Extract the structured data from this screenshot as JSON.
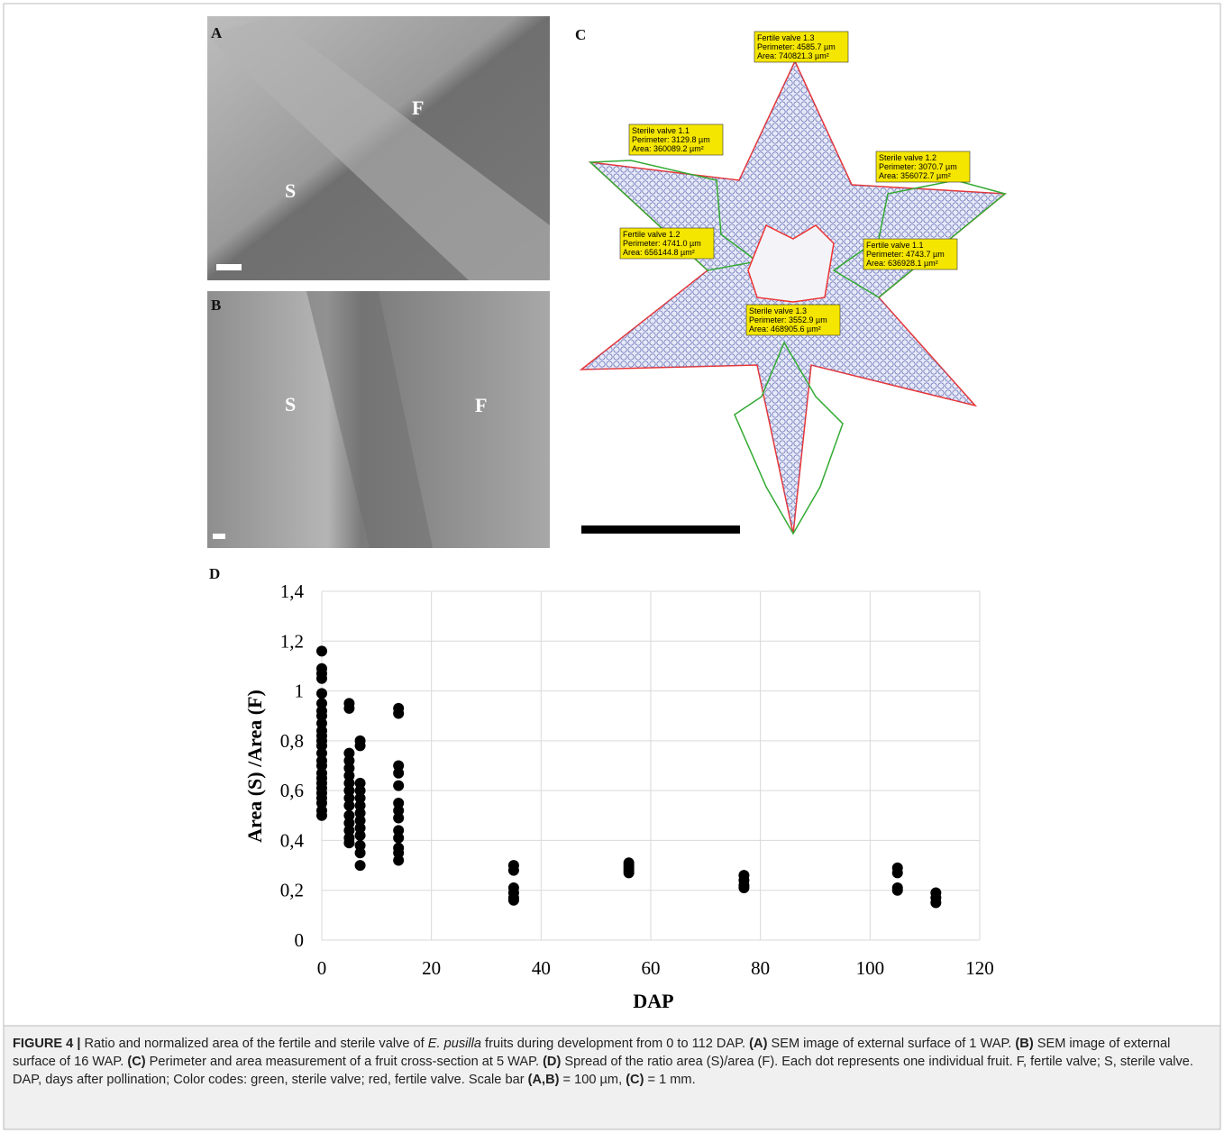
{
  "panels": {
    "a": {
      "letter": "A",
      "labels": [
        "F",
        "S"
      ]
    },
    "b": {
      "letter": "B",
      "labels": [
        "S",
        "F"
      ]
    },
    "c": {
      "letter": "C"
    },
    "d": {
      "letter": "D"
    }
  },
  "panel_c": {
    "annotations": [
      [
        "Fertile valve 1.3",
        "Perimeter: 4585.7 µm",
        "Area: 740821.3 µm²"
      ],
      [
        "Sterile valve 1.1",
        "Perimeter: 3129.8 µm",
        "Area: 360089.2 µm²"
      ],
      [
        "Sterile valve 1.2",
        "Perimeter: 3070.7 µm",
        "Area: 356072.7 µm²"
      ],
      [
        "Fertile valve 1.2",
        "Perimeter: 4741.0 µm",
        "Area: 656144.8 µm²"
      ],
      [
        "Fertile valve 1.1",
        "Perimeter: 4743.7 µm",
        "Area: 636928.1 µm²"
      ],
      [
        "Sterile valve 1.3",
        "Perimeter: 3552.9 µm",
        "Area: 468905.6 µm²"
      ]
    ]
  },
  "chart_data": {
    "type": "scatter",
    "x_label": "DAP",
    "y_label": "Area (S) /Area (F)",
    "color": "#000000",
    "grid": true,
    "x": [
      0,
      0,
      0,
      0,
      0,
      0,
      0,
      0,
      0,
      0,
      0,
      0,
      0,
      0,
      0,
      0,
      0,
      0,
      0,
      0,
      0,
      0,
      0,
      0,
      0,
      5,
      5,
      5,
      5,
      5,
      5,
      5,
      5,
      5,
      5,
      5,
      5,
      5,
      5,
      5,
      7,
      7,
      7,
      7,
      7,
      7,
      7,
      7,
      7,
      7,
      7,
      7,
      7,
      14,
      14,
      14,
      14,
      14,
      14,
      14,
      14,
      14,
      14,
      14,
      14,
      14,
      35,
      35,
      35,
      35,
      35,
      35,
      56,
      56,
      56,
      56,
      56,
      77,
      77,
      77,
      77,
      105,
      105,
      105,
      105,
      112,
      112,
      112
    ],
    "y": [
      1.16,
      1.09,
      1.07,
      1.05,
      0.99,
      0.95,
      0.92,
      0.9,
      0.87,
      0.84,
      0.82,
      0.8,
      0.78,
      0.75,
      0.72,
      0.7,
      0.67,
      0.65,
      0.63,
      0.61,
      0.59,
      0.57,
      0.55,
      0.52,
      0.5,
      0.95,
      0.93,
      0.75,
      0.72,
      0.69,
      0.66,
      0.63,
      0.6,
      0.57,
      0.54,
      0.5,
      0.47,
      0.44,
      0.41,
      0.39,
      0.8,
      0.78,
      0.63,
      0.6,
      0.57,
      0.54,
      0.51,
      0.48,
      0.45,
      0.42,
      0.38,
      0.35,
      0.3,
      0.93,
      0.91,
      0.7,
      0.67,
      0.62,
      0.55,
      0.52,
      0.49,
      0.44,
      0.41,
      0.37,
      0.35,
      0.32,
      0.3,
      0.28,
      0.21,
      0.19,
      0.17,
      0.16,
      0.31,
      0.3,
      0.29,
      0.28,
      0.27,
      0.26,
      0.24,
      0.22,
      0.21,
      0.29,
      0.27,
      0.21,
      0.2,
      0.19,
      0.17,
      0.15
    ],
    "xlim": [
      0,
      120
    ],
    "xticks": [
      0,
      20,
      40,
      60,
      80,
      100,
      120
    ],
    "ylim": [
      0,
      1.4
    ],
    "yticks": [
      0,
      {
        "value": 0.2,
        "label": "0,2"
      },
      {
        "value": 0.4,
        "label": "0,4"
      },
      {
        "value": 0.6,
        "label": "0,6"
      },
      {
        "value": 0.8,
        "label": "0,8"
      },
      1,
      {
        "value": 1.2,
        "label": "1,2"
      },
      {
        "value": 1.4,
        "label": "1,4"
      }
    ]
  },
  "caption": [
    "FIGURE 4 |",
    " Ratio and normalized area of the fertile and sterile valve of ",
    "E. pusilla",
    " fruits during development from 0 to 112 DAP. ",
    "(A)",
    " SEM image of external surface of 1 WAP. ",
    "(B)",
    " SEM image of external surface of 16 WAP. ",
    "(C)",
    " Perimeter and area measurement of a fruit cross-section at 5 WAP. ",
    "(D)",
    " Spread of the ratio area (S)/area (F). Each dot represents one individual fruit. F, fertile valve; S, sterile valve. DAP, days after pollination; Color codes: green, sterile valve; red, fertile valve. Scale bar ",
    "(A,B)",
    " = 100 µm, ",
    "(C)",
    " = 1 mm."
  ]
}
